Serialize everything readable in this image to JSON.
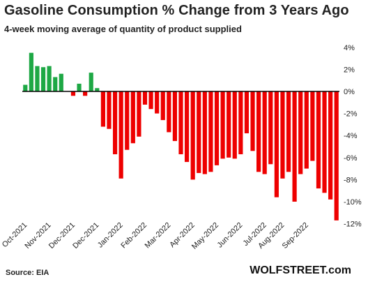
{
  "chart_data": {
    "type": "bar",
    "title": "Gasoline Consumption % Change from 3 Years Ago",
    "subtitle": "4-week moving average of quantity of product supplied",
    "ylim": [
      -12.5,
      4.5
    ],
    "y_ticks": [
      4,
      2,
      0,
      -2,
      -4,
      -6,
      -8,
      -10,
      -12
    ],
    "y_tick_labels": [
      "4%",
      "2%",
      "0%",
      "-2%",
      "-4%",
      "-6%",
      "-8%",
      "-10%",
      "-12%"
    ],
    "x_tick_labels": [
      "Oct-2021",
      "Nov-2021",
      "Dec-2021",
      "Dec-2021",
      "Jan-2022",
      "Feb-2022",
      "Mar-2022",
      "Apr-2022",
      "May-2022",
      "Jun-2022",
      "Jul-2022",
      "Aug-2022",
      "Sep-2022"
    ],
    "x_tick_bar_index": [
      0,
      4,
      8,
      12,
      16,
      20,
      24,
      28,
      32,
      36,
      40,
      43,
      47
    ],
    "values": [
      0.6,
      3.5,
      2.3,
      2.2,
      2.3,
      1.3,
      1.6,
      0,
      -0.4,
      0.7,
      -0.4,
      1.7,
      0.3,
      -3.2,
      -3.4,
      -5.7,
      -7.9,
      -5.3,
      -4.7,
      -4.1,
      -1.2,
      -1.6,
      -2.0,
      -2.6,
      -3.7,
      -4.5,
      -5.7,
      -6.4,
      -8.0,
      -7.4,
      -7.5,
      -7.3,
      -6.7,
      -6.1,
      -6.0,
      -6.1,
      -5.7,
      -3.8,
      -5.4,
      -7.3,
      -7.5,
      -6.6,
      -9.6,
      -7.9,
      -7.3,
      -10.0,
      -7.5,
      -7.0,
      -6.3,
      -8.8,
      -9.2,
      -9.8,
      -11.7
    ],
    "colors": {
      "positive": "#1ea845",
      "negative": "#ee0000"
    }
  },
  "footer": {
    "source": "Source: EIA",
    "brand": "WOLFSTREET.com"
  }
}
